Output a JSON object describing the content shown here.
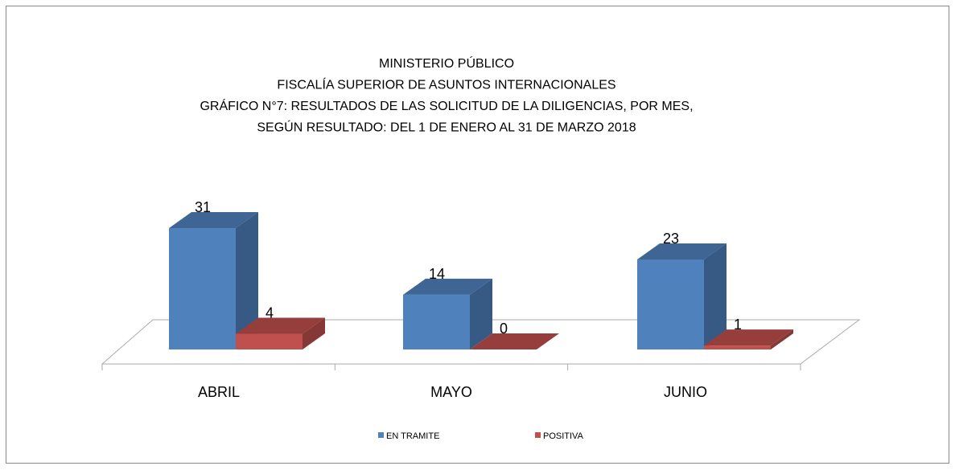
{
  "chart_data": {
    "type": "bar3d",
    "title": [
      "MINISTERIO PÚBLICO",
      "FISCALÍA SUPERIOR DE ASUNTOS INTERNACIONALES",
      "GRÁFICO N°7:  RESULTADOS DE LAS SOLICITUD DE LA DILIGENCIAS, POR MES,",
      "SEGÚN RESULTADO: DEL 1 DE ENERO AL 31 DE MARZO 2018"
    ],
    "categories": [
      "ABRIL",
      "MAYO",
      "JUNIO"
    ],
    "series": [
      {
        "name": "EN TRAMITE",
        "color": "#4f81bd",
        "values": [
          31,
          14,
          23
        ]
      },
      {
        "name": "POSITIVA",
        "color": "#c0504d",
        "values": [
          4,
          0,
          1
        ]
      }
    ],
    "legend": "bottom"
  }
}
